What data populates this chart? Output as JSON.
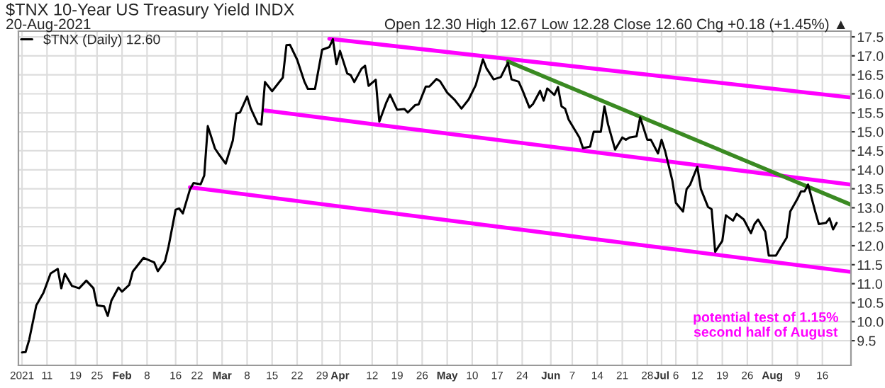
{
  "chart_data": {
    "type": "line",
    "title": "$TNX 10-Year US Treasury Yield INDX",
    "subtitle": "20-Aug-2021",
    "annotations": [
      "Open 12.30 High 12.67 Low 12.28 Close 12.60 Chg +0.18 (+1.45%) ▲",
      "potential test of 1.15%\nsecond half of August"
    ],
    "series": [
      {
        "name": "$TNX (Daily) 12.60",
        "color": "#000000",
        "x": [
          "2021-01-04",
          "2021-01-05",
          "2021-01-06",
          "2021-01-08",
          "2021-01-10",
          "2021-01-12",
          "2021-01-14",
          "2021-01-15",
          "2021-01-16",
          "2021-01-18",
          "2021-01-20",
          "2021-01-22",
          "2021-01-24",
          "2021-01-25",
          "2021-01-27",
          "2021-01-28",
          "2021-01-29",
          "2021-01-31",
          "2021-02-01",
          "2021-02-03",
          "2021-02-04",
          "2021-02-07",
          "2021-02-10",
          "2021-02-11",
          "2021-02-13",
          "2021-02-14",
          "2021-02-16",
          "2021-02-17",
          "2021-02-18",
          "2021-02-20",
          "2021-02-21",
          "2021-02-23",
          "2021-02-24",
          "2021-02-25",
          "2021-02-27",
          "2021-02-28",
          "2021-03-02",
          "2021-03-04",
          "2021-03-05",
          "2021-03-06",
          "2021-03-08",
          "2021-03-09",
          "2021-03-11",
          "2021-03-12",
          "2021-03-13",
          "2021-03-15",
          "2021-03-18",
          "2021-03-19",
          "2021-03-20",
          "2021-03-22",
          "2021-03-24",
          "2021-03-25",
          "2021-03-27",
          "2021-03-29",
          "2021-03-31",
          "2021-04-01",
          "2021-04-02",
          "2021-04-03",
          "2021-04-05",
          "2021-04-06",
          "2021-04-07",
          "2021-04-09",
          "2021-04-10",
          "2021-04-11",
          "2021-04-13",
          "2021-04-14",
          "2021-04-16",
          "2021-04-17",
          "2021-04-19",
          "2021-04-21",
          "2021-04-22",
          "2021-04-24",
          "2021-04-25",
          "2021-04-27",
          "2021-04-28",
          "2021-04-30",
          "2021-05-01",
          "2021-05-03",
          "2021-05-05",
          "2021-05-07",
          "2021-05-09",
          "2021-05-11",
          "2021-05-13",
          "2021-05-14",
          "2021-05-16",
          "2021-05-18",
          "2021-05-20",
          "2021-05-21",
          "2021-05-23",
          "2021-05-24",
          "2021-05-26",
          "2021-05-27",
          "2021-05-29",
          "2021-05-30",
          "2021-05-31",
          "2021-06-02",
          "2021-06-03",
          "2021-06-04",
          "2021-06-05",
          "2021-06-06",
          "2021-06-09",
          "2021-06-10",
          "2021-06-12",
          "2021-06-13",
          "2021-06-15",
          "2021-06-16",
          "2021-06-17",
          "2021-06-19",
          "2021-06-21",
          "2021-06-22",
          "2021-06-23",
          "2021-06-25",
          "2021-06-26",
          "2021-06-28",
          "2021-06-29",
          "2021-07-01",
          "2021-07-02",
          "2021-07-03",
          "2021-07-05",
          "2021-07-06",
          "2021-07-08",
          "2021-07-09",
          "2021-07-10",
          "2021-07-12",
          "2021-07-13",
          "2021-07-15",
          "2021-07-16",
          "2021-07-17",
          "2021-07-19",
          "2021-07-20",
          "2021-07-22",
          "2021-07-23",
          "2021-07-25",
          "2021-07-27",
          "2021-07-28",
          "2021-07-29",
          "2021-07-31",
          "2021-08-01",
          "2021-08-03",
          "2021-08-04",
          "2021-08-06",
          "2021-08-07",
          "2021-08-09",
          "2021-08-10",
          "2021-08-11",
          "2021-08-12",
          "2021-08-14",
          "2021-08-15",
          "2021-08-17",
          "2021-08-18",
          "2021-08-19",
          "2021-08-20"
        ],
        "values": [
          9.19,
          9.2,
          9.52,
          10.43,
          10.76,
          11.27,
          11.39,
          10.88,
          11.26,
          10.94,
          10.88,
          11.08,
          10.88,
          10.43,
          10.4,
          10.15,
          10.55,
          10.9,
          10.79,
          10.97,
          11.32,
          11.68,
          11.56,
          11.33,
          11.59,
          11.97,
          12.95,
          12.98,
          12.85,
          13.48,
          13.65,
          13.62,
          13.85,
          15.15,
          14.56,
          14.42,
          14.16,
          14.77,
          15.48,
          15.51,
          15.93,
          15.62,
          15.21,
          15.19,
          16.31,
          16.07,
          16.43,
          17.28,
          17.29,
          16.9,
          16.33,
          16.13,
          16.13,
          17.16,
          17.23,
          17.44,
          16.78,
          17.13,
          16.54,
          16.49,
          16.31,
          16.66,
          16.74,
          16.21,
          16.37,
          15.27,
          15.78,
          15.98,
          15.58,
          15.6,
          15.51,
          15.7,
          15.72,
          16.19,
          16.19,
          16.39,
          16.33,
          16.03,
          15.85,
          15.61,
          15.85,
          16.23,
          16.91,
          16.67,
          16.38,
          16.44,
          16.82,
          16.38,
          16.32,
          16.11,
          15.64,
          15.73,
          16.08,
          15.82,
          16.14,
          15.97,
          16.18,
          15.67,
          15.61,
          15.32,
          14.85,
          14.57,
          14.61,
          15.0,
          15.0,
          15.67,
          15.2,
          14.53,
          14.85,
          14.79,
          14.85,
          14.88,
          15.38,
          14.79,
          14.79,
          14.43,
          14.79,
          14.49,
          13.72,
          13.13,
          12.9,
          13.49,
          13.61,
          14.08,
          13.49,
          13.02,
          12.96,
          11.84,
          12.13,
          12.8,
          12.66,
          12.84,
          12.69,
          12.33,
          12.57,
          12.69,
          12.37,
          11.74,
          11.74,
          11.9,
          12.21,
          12.9,
          13.23,
          13.43,
          13.43,
          13.61,
          12.9,
          12.57,
          12.6,
          12.72,
          12.43,
          12.6
        ]
      },
      {
        "color": "#ff00ff",
        "x": [
          "2021-03-31",
          "2021-08-24"
        ],
        "values": [
          17.45,
          15.9
        ]
      },
      {
        "color": "#ff00ff",
        "x": [
          "2021-03-13",
          "2021-08-24"
        ],
        "values": [
          15.56,
          13.61
        ]
      },
      {
        "color": "#ff00ff",
        "x": [
          "2021-02-20",
          "2021-08-24"
        ],
        "values": [
          13.54,
          11.31
        ]
      },
      {
        "color": "#3a8a22",
        "x": [
          "2021-05-20",
          "2021-08-24"
        ],
        "values": [
          16.85,
          13.08
        ]
      }
    ],
    "xlim": [
      "2021-01-03",
      "2021-08-24"
    ],
    "xticks": [
      {
        "value": "2021-01-04",
        "label": "2021"
      },
      {
        "value": "2021-01-11",
        "label": "11"
      },
      {
        "value": "2021-01-19",
        "label": "19"
      },
      {
        "value": "2021-01-25",
        "label": "25"
      },
      {
        "value": "2021-02-01",
        "label": "Feb"
      },
      {
        "value": "2021-02-08",
        "label": "8"
      },
      {
        "value": "2021-02-16",
        "label": "16"
      },
      {
        "value": "2021-02-22",
        "label": "22"
      },
      {
        "value": "2021-03-01",
        "label": "Mar"
      },
      {
        "value": "2021-03-08",
        "label": "8"
      },
      {
        "value": "2021-03-15",
        "label": "15"
      },
      {
        "value": "2021-03-22",
        "label": "22"
      },
      {
        "value": "2021-03-29",
        "label": "29"
      },
      {
        "value": "2021-04-03",
        "label": "Apr"
      },
      {
        "value": "2021-04-12",
        "label": "12"
      },
      {
        "value": "2021-04-19",
        "label": "19"
      },
      {
        "value": "2021-04-26",
        "label": "26"
      },
      {
        "value": "2021-05-03",
        "label": "May"
      },
      {
        "value": "2021-05-10",
        "label": "10"
      },
      {
        "value": "2021-05-17",
        "label": "17"
      },
      {
        "value": "2021-05-24",
        "label": "24"
      },
      {
        "value": "2021-06-01",
        "label": "Jun"
      },
      {
        "value": "2021-06-07",
        "label": "7"
      },
      {
        "value": "2021-06-14",
        "label": "14"
      },
      {
        "value": "2021-06-21",
        "label": "21"
      },
      {
        "value": "2021-06-28",
        "label": "28"
      },
      {
        "value": "2021-07-02",
        "label": "Jul"
      },
      {
        "value": "2021-07-06",
        "label": "6"
      },
      {
        "value": "2021-07-12",
        "label": "12"
      },
      {
        "value": "2021-07-19",
        "label": "19"
      },
      {
        "value": "2021-07-26",
        "label": "26"
      },
      {
        "value": "2021-08-02",
        "label": "Aug"
      },
      {
        "value": "2021-08-09",
        "label": "9"
      },
      {
        "value": "2021-08-16",
        "label": "16"
      }
    ],
    "ylim": [
      8.85,
      17.65
    ],
    "yticks": [
      9.5,
      {
        "value": 10,
        "label": "10.0"
      },
      10.5,
      {
        "value": 11,
        "label": "11.0"
      },
      11.5,
      {
        "value": 12,
        "label": "12.0"
      },
      12.5,
      {
        "value": 13,
        "label": "13.0"
      },
      13.5,
      {
        "value": 14,
        "label": "14.0"
      },
      14.5,
      {
        "value": 15,
        "label": "15.0"
      },
      15.5,
      {
        "value": 16,
        "label": "16.0"
      },
      16.5,
      {
        "value": 17,
        "label": "17.0"
      },
      17.5
    ],
    "grid": true,
    "legend": "top left",
    "marker": "none",
    "line_style": "solid"
  }
}
